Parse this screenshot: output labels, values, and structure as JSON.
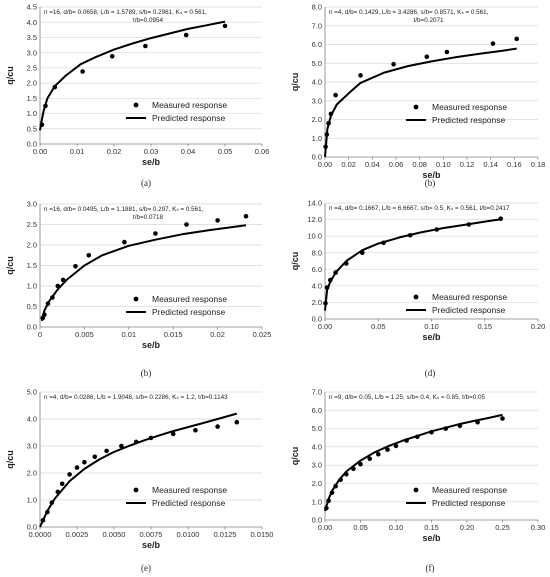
{
  "chart_data": [
    {
      "type": "scatter+line",
      "panel_label": "(a)",
      "annotation": [
        "n =16, d/b= 0.0658, L/b = 1.5789, s/b= 0.2961, Kₛ = 0.561,",
        "t/b=0.0954"
      ],
      "xlabel": "se/b",
      "ylabel": "q/cu",
      "xlim": [
        0,
        0.06
      ],
      "ylim": [
        0,
        4.5
      ],
      "xticks": [
        "0.00",
        "0.01",
        "0.02",
        "0.03",
        "0.04",
        "0.05",
        "0.06"
      ],
      "yticks": [
        "0.0",
        "0.5",
        "1.0",
        "1.5",
        "2.0",
        "2.5",
        "3.0",
        "3.5",
        "4.0",
        "4.5"
      ],
      "series": [
        {
          "name": "Measured response",
          "kind": "markers",
          "x": [
            0.0005,
            0.0015,
            0.004,
            0.0115,
            0.0195,
            0.0285,
            0.0395,
            0.05
          ],
          "y": [
            0.63,
            1.25,
            1.87,
            2.38,
            2.88,
            3.22,
            3.58,
            3.88
          ]
        },
        {
          "name": "Predicted response",
          "kind": "line",
          "x": [
            0,
            0.0005,
            0.001,
            0.002,
            0.004,
            0.007,
            0.011,
            0.015,
            0.02,
            0.025,
            0.03,
            0.035,
            0.04,
            0.045,
            0.05
          ],
          "y": [
            0.45,
            0.8,
            1.1,
            1.5,
            1.9,
            2.25,
            2.62,
            2.85,
            3.1,
            3.3,
            3.48,
            3.63,
            3.78,
            3.9,
            4.02
          ]
        }
      ],
      "legend": "right"
    },
    {
      "type": "scatter+line",
      "panel_label": "(b)",
      "annotation": [
        "n =4, d/b= 0.1429, L/b = 3.4286, s/b= 0.8571, Kₛ = 0.561,",
        "t/b=0.2071"
      ],
      "xlabel": "se/b",
      "ylabel": "q/cu",
      "xlim": [
        0,
        0.18
      ],
      "ylim": [
        0,
        8.0
      ],
      "xticks": [
        "0.00",
        "0.02",
        "0.04",
        "0.06",
        "0.08",
        "0.10",
        "0.12",
        "0.14",
        "0.16",
        "0.18"
      ],
      "yticks": [
        "0.0",
        "1.0",
        "2.0",
        "3.0",
        "4.0",
        "5.0",
        "6.0",
        "7.0",
        "8.0"
      ],
      "series": [
        {
          "name": "Measured response",
          "kind": "markers",
          "x": [
            0.0005,
            0.0015,
            0.003,
            0.005,
            0.009,
            0.03,
            0.058,
            0.086,
            0.103,
            0.142,
            0.162
          ],
          "y": [
            0.55,
            1.2,
            1.8,
            2.3,
            3.3,
            4.35,
            4.95,
            5.35,
            5.6,
            6.05,
            6.3
          ]
        },
        {
          "name": "Predicted response",
          "kind": "line",
          "x": [
            0,
            0.002,
            0.005,
            0.01,
            0.02,
            0.03,
            0.05,
            0.07,
            0.09,
            0.11,
            0.13,
            0.15,
            0.162
          ],
          "y": [
            0.0,
            1.5,
            2.2,
            2.8,
            3.4,
            3.95,
            4.5,
            4.85,
            5.1,
            5.32,
            5.5,
            5.67,
            5.78
          ]
        }
      ],
      "legend": "right"
    },
    {
      "type": "scatter+line",
      "panel_label": "(b)",
      "annotation": [
        "n =16, d/b= 0.0495, L/b = 1.1881, s/b= 0.297, Kₛ = 0.561,",
        "t/b=0.0718"
      ],
      "xlabel": "se/b",
      "ylabel": "q/cu",
      "xlim": [
        0,
        0.025
      ],
      "ylim": [
        0,
        3.0
      ],
      "xticks": [
        "0",
        "0.005",
        "0.01",
        "0.015",
        "0.02",
        "0.025"
      ],
      "yticks": [
        "0.0",
        "0.5",
        "1.0",
        "1.5",
        "2.0",
        "2.5",
        "3.0"
      ],
      "series": [
        {
          "name": "Measured response",
          "kind": "markers",
          "x": [
            0.0003,
            0.0005,
            0.0009,
            0.0014,
            0.002,
            0.0026,
            0.004,
            0.0055,
            0.0095,
            0.013,
            0.0165,
            0.02,
            0.0232
          ],
          "y": [
            0.22,
            0.3,
            0.57,
            0.72,
            1.0,
            1.15,
            1.48,
            1.75,
            2.07,
            2.28,
            2.5,
            2.6,
            2.7
          ]
        },
        {
          "name": "Predicted response",
          "kind": "line",
          "x": [
            0.0002,
            0.0005,
            0.001,
            0.002,
            0.003,
            0.005,
            0.007,
            0.01,
            0.013,
            0.016,
            0.019,
            0.0232
          ],
          "y": [
            0.15,
            0.4,
            0.62,
            0.92,
            1.15,
            1.5,
            1.75,
            1.98,
            2.13,
            2.26,
            2.36,
            2.48
          ]
        }
      ],
      "legend": "right"
    },
    {
      "type": "scatter+line",
      "panel_label": "(d)",
      "annotation": [
        "n =4, d/b= 0.1667, L/b = 6.6667, s/b= 0.5, Kₛ = 0.561, t/b=0.2417"
      ],
      "xlabel": "se/b",
      "ylabel": "q/cu",
      "xlim": [
        0,
        0.2
      ],
      "ylim": [
        0,
        14.0
      ],
      "xticks": [
        "0.00",
        "0.05",
        "0.10",
        "0.15",
        "0.20"
      ],
      "yticks": [
        "0.0",
        "2.0",
        "4.0",
        "6.0",
        "8.0",
        "10.0",
        "12.0",
        "14.0"
      ],
      "series": [
        {
          "name": "Measured response",
          "kind": "markers",
          "x": [
            0.0005,
            0.002,
            0.005,
            0.01,
            0.02,
            0.035,
            0.055,
            0.08,
            0.105,
            0.135,
            0.165
          ],
          "y": [
            1.9,
            3.8,
            4.7,
            5.6,
            6.7,
            8.0,
            9.2,
            10.1,
            10.8,
            11.4,
            12.1
          ]
        },
        {
          "name": "Predicted response",
          "kind": "line",
          "x": [
            0,
            0.002,
            0.005,
            0.01,
            0.02,
            0.035,
            0.05,
            0.07,
            0.09,
            0.11,
            0.13,
            0.15,
            0.165
          ],
          "y": [
            1.0,
            3.5,
            4.5,
            5.6,
            7.0,
            8.3,
            9.1,
            9.85,
            10.45,
            10.95,
            11.35,
            11.75,
            12.05
          ]
        }
      ],
      "legend": "right"
    },
    {
      "type": "scatter+line",
      "panel_label": "(e)",
      "annotation": [
        "n =4, d/b= 0.0286, L/b = 1.9048, s/b= 0.2286, Kₛ = 1.2, t/b=0.1143"
      ],
      "xlabel": "se/b",
      "ylabel": "q/cu",
      "xlim": [
        0,
        0.015
      ],
      "ylim": [
        0,
        5.0
      ],
      "xticks": [
        "0.0000",
        "0.0025",
        "0.0050",
        "0.0075",
        "0.0100",
        "0.0125",
        "0.0150"
      ],
      "yticks": [
        "0.0",
        "1.0",
        "2.0",
        "3.0",
        "4.0",
        "5.0"
      ],
      "series": [
        {
          "name": "Measured response",
          "kind": "markers",
          "x": [
            0.0002,
            0.0005,
            0.0008,
            0.0012,
            0.0015,
            0.002,
            0.0025,
            0.003,
            0.0037,
            0.0045,
            0.0055,
            0.0065,
            0.0075,
            0.009,
            0.0105,
            0.012,
            0.0133
          ],
          "y": [
            0.25,
            0.55,
            0.9,
            1.3,
            1.6,
            1.95,
            2.2,
            2.4,
            2.6,
            2.82,
            3.0,
            3.15,
            3.3,
            3.45,
            3.58,
            3.72,
            3.88
          ]
        },
        {
          "name": "Predicted response",
          "kind": "line",
          "x": [
            0,
            0.0005,
            0.001,
            0.002,
            0.003,
            0.004,
            0.005,
            0.006,
            0.007,
            0.008,
            0.009,
            0.01,
            0.011,
            0.012,
            0.0133
          ],
          "y": [
            0.0,
            0.6,
            1.05,
            1.7,
            2.15,
            2.5,
            2.78,
            3.0,
            3.2,
            3.38,
            3.55,
            3.7,
            3.85,
            4.0,
            4.2
          ]
        }
      ],
      "legend": "right"
    },
    {
      "type": "scatter+line",
      "panel_label": "(f)",
      "annotation": [
        "n =9, d/b= 0.05, L/b = 1.25, s/b= 0.4, Kₛ = 0.85, t/b=0.05"
      ],
      "xlabel": "se/b",
      "ylabel": "q/cu",
      "xlim": [
        0,
        0.3
      ],
      "ylim": [
        0,
        7.0
      ],
      "xticks": [
        "0.00",
        "0.05",
        "0.10",
        "0.15",
        "0.20",
        "0.25",
        "0.30"
      ],
      "yticks": [
        "0.0",
        "1.0",
        "2.0",
        "3.0",
        "4.0",
        "5.0",
        "6.0",
        "7.0"
      ],
      "series": [
        {
          "name": "Measured response",
          "kind": "markers",
          "x": [
            0.002,
            0.005,
            0.01,
            0.015,
            0.022,
            0.03,
            0.04,
            0.05,
            0.063,
            0.075,
            0.088,
            0.1,
            0.115,
            0.13,
            0.15,
            0.17,
            0.19,
            0.215,
            0.25
          ],
          "y": [
            0.65,
            1.05,
            1.5,
            1.85,
            2.2,
            2.5,
            2.8,
            3.05,
            3.35,
            3.6,
            3.85,
            4.05,
            4.35,
            4.55,
            4.8,
            5.0,
            5.15,
            5.35,
            5.55
          ]
        },
        {
          "name": "Predicted response",
          "kind": "line",
          "x": [
            0,
            0.005,
            0.01,
            0.02,
            0.03,
            0.05,
            0.07,
            0.09,
            0.11,
            0.13,
            0.15,
            0.17,
            0.19,
            0.21,
            0.23,
            0.25
          ],
          "y": [
            0.5,
            1.15,
            1.6,
            2.2,
            2.65,
            3.25,
            3.7,
            4.05,
            4.35,
            4.6,
            4.85,
            5.05,
            5.25,
            5.42,
            5.58,
            5.75
          ]
        }
      ],
      "legend": "right"
    }
  ]
}
